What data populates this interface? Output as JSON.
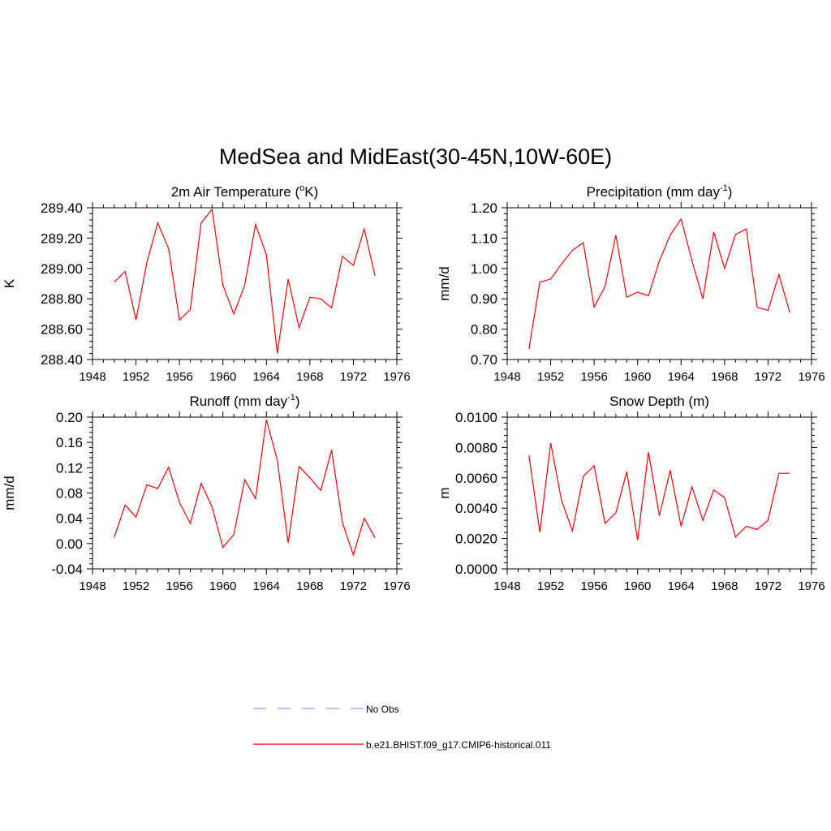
{
  "figure": {
    "title": "MedSea and MidEast(30-45N,10W-60E)"
  },
  "legend": {
    "entries": [
      {
        "label": "No Obs",
        "color": "#9999ee",
        "style": "dashed"
      },
      {
        "label": "b.e21.BHIST.f09_g17.CMIP6-historical.011",
        "color": "#ff0000",
        "style": "solid"
      }
    ]
  },
  "chart_data": [
    {
      "type": "line",
      "title": "2m Air Temperature (",
      "title_sup": "o",
      "title_after": "K)",
      "ylabel": "K",
      "xlim": [
        1948,
        1976
      ],
      "xticks": [
        1948,
        1952,
        1956,
        1960,
        1964,
        1968,
        1972,
        1976
      ],
      "ylim": [
        288.4,
        289.4
      ],
      "yticks": [
        "288.40",
        "288.60",
        "288.80",
        "289.00",
        "289.20",
        "289.40"
      ],
      "series": [
        {
          "color": "#ff0000",
          "x": [
            1950,
            1951,
            1952,
            1953,
            1954,
            1955,
            1956,
            1957,
            1958,
            1959,
            1960,
            1961,
            1962,
            1963,
            1964,
            1965,
            1966,
            1967,
            1968,
            1969,
            1970,
            1971,
            1972,
            1973,
            1974
          ],
          "y": [
            288.91,
            288.98,
            288.66,
            289.04,
            289.3,
            289.13,
            288.66,
            288.73,
            289.3,
            289.39,
            288.89,
            288.7,
            288.89,
            289.29,
            289.09,
            288.44,
            288.93,
            288.61,
            288.81,
            288.8,
            288.74,
            289.08,
            289.02,
            289.26,
            288.95
          ]
        }
      ]
    },
    {
      "type": "line",
      "title": "Precipitation (mm day",
      "title_sup": "-1",
      "title_after": ")",
      "ylabel": "mm/d",
      "xlim": [
        1948,
        1976
      ],
      "xticks": [
        1948,
        1952,
        1956,
        1960,
        1964,
        1968,
        1972,
        1976
      ],
      "ylim": [
        0.7,
        1.2
      ],
      "yticks": [
        "0.70",
        "0.80",
        "0.90",
        "1.00",
        "1.10",
        "1.20"
      ],
      "series": [
        {
          "color": "#ff0000",
          "x": [
            1950,
            1951,
            1952,
            1953,
            1954,
            1955,
            1956,
            1957,
            1958,
            1959,
            1960,
            1961,
            1962,
            1963,
            1964,
            1965,
            1966,
            1967,
            1968,
            1969,
            1970,
            1971,
            1972,
            1973,
            1974
          ],
          "y": [
            0.735,
            0.955,
            0.965,
            1.015,
            1.06,
            1.085,
            0.873,
            0.94,
            1.11,
            0.905,
            0.922,
            0.91,
            1.025,
            1.11,
            1.163,
            1.025,
            0.9,
            1.12,
            1.0,
            1.112,
            1.13,
            0.872,
            0.862,
            0.98,
            0.855
          ]
        }
      ]
    },
    {
      "type": "line",
      "title": "Runoff (mm day",
      "title_sup": "-1",
      "title_after": ")",
      "ylabel": "mm/d",
      "xlim": [
        1948,
        1976
      ],
      "xticks": [
        1948,
        1952,
        1956,
        1960,
        1964,
        1968,
        1972,
        1976
      ],
      "ylim": [
        -0.04,
        0.2
      ],
      "yticks": [
        "-0.04",
        "0.00",
        "0.04",
        "0.08",
        "0.12",
        "0.16",
        "0.20"
      ],
      "series": [
        {
          "color": "#ff0000",
          "x": [
            1950,
            1951,
            1952,
            1953,
            1954,
            1955,
            1956,
            1957,
            1958,
            1959,
            1960,
            1961,
            1962,
            1963,
            1964,
            1965,
            1966,
            1967,
            1968,
            1969,
            1970,
            1971,
            1972,
            1973,
            1974
          ],
          "y": [
            0.01,
            0.061,
            0.042,
            0.093,
            0.087,
            0.121,
            0.065,
            0.032,
            0.095,
            0.058,
            -0.006,
            0.014,
            0.101,
            0.071,
            0.196,
            0.132,
            0.001,
            0.122,
            0.104,
            0.084,
            0.148,
            0.033,
            -0.018,
            0.04,
            0.009
          ]
        }
      ]
    },
    {
      "type": "line",
      "title": "Snow Depth (m)",
      "title_sup": "",
      "title_after": "",
      "ylabel": "m",
      "xlim": [
        1948,
        1976
      ],
      "xticks": [
        1948,
        1952,
        1956,
        1960,
        1964,
        1968,
        1972,
        1976
      ],
      "ylim": [
        0.0,
        0.01
      ],
      "yticks": [
        "0.0000",
        "0.0020",
        "0.0040",
        "0.0060",
        "0.0080",
        "0.0100"
      ],
      "series": [
        {
          "color": "#ff0000",
          "x": [
            1950,
            1951,
            1952,
            1953,
            1954,
            1955,
            1956,
            1957,
            1958,
            1959,
            1960,
            1961,
            1962,
            1963,
            1964,
            1965,
            1966,
            1967,
            1968,
            1969,
            1970,
            1971,
            1972,
            1973,
            1974
          ],
          "y": [
            0.0075,
            0.0024,
            0.0083,
            0.0045,
            0.0025,
            0.0061,
            0.0068,
            0.003,
            0.0037,
            0.0064,
            0.0019,
            0.0077,
            0.0035,
            0.0065,
            0.0028,
            0.0054,
            0.0032,
            0.0052,
            0.0047,
            0.0021,
            0.0028,
            0.0026,
            0.0032,
            0.0063,
            0.0063
          ]
        }
      ]
    }
  ]
}
